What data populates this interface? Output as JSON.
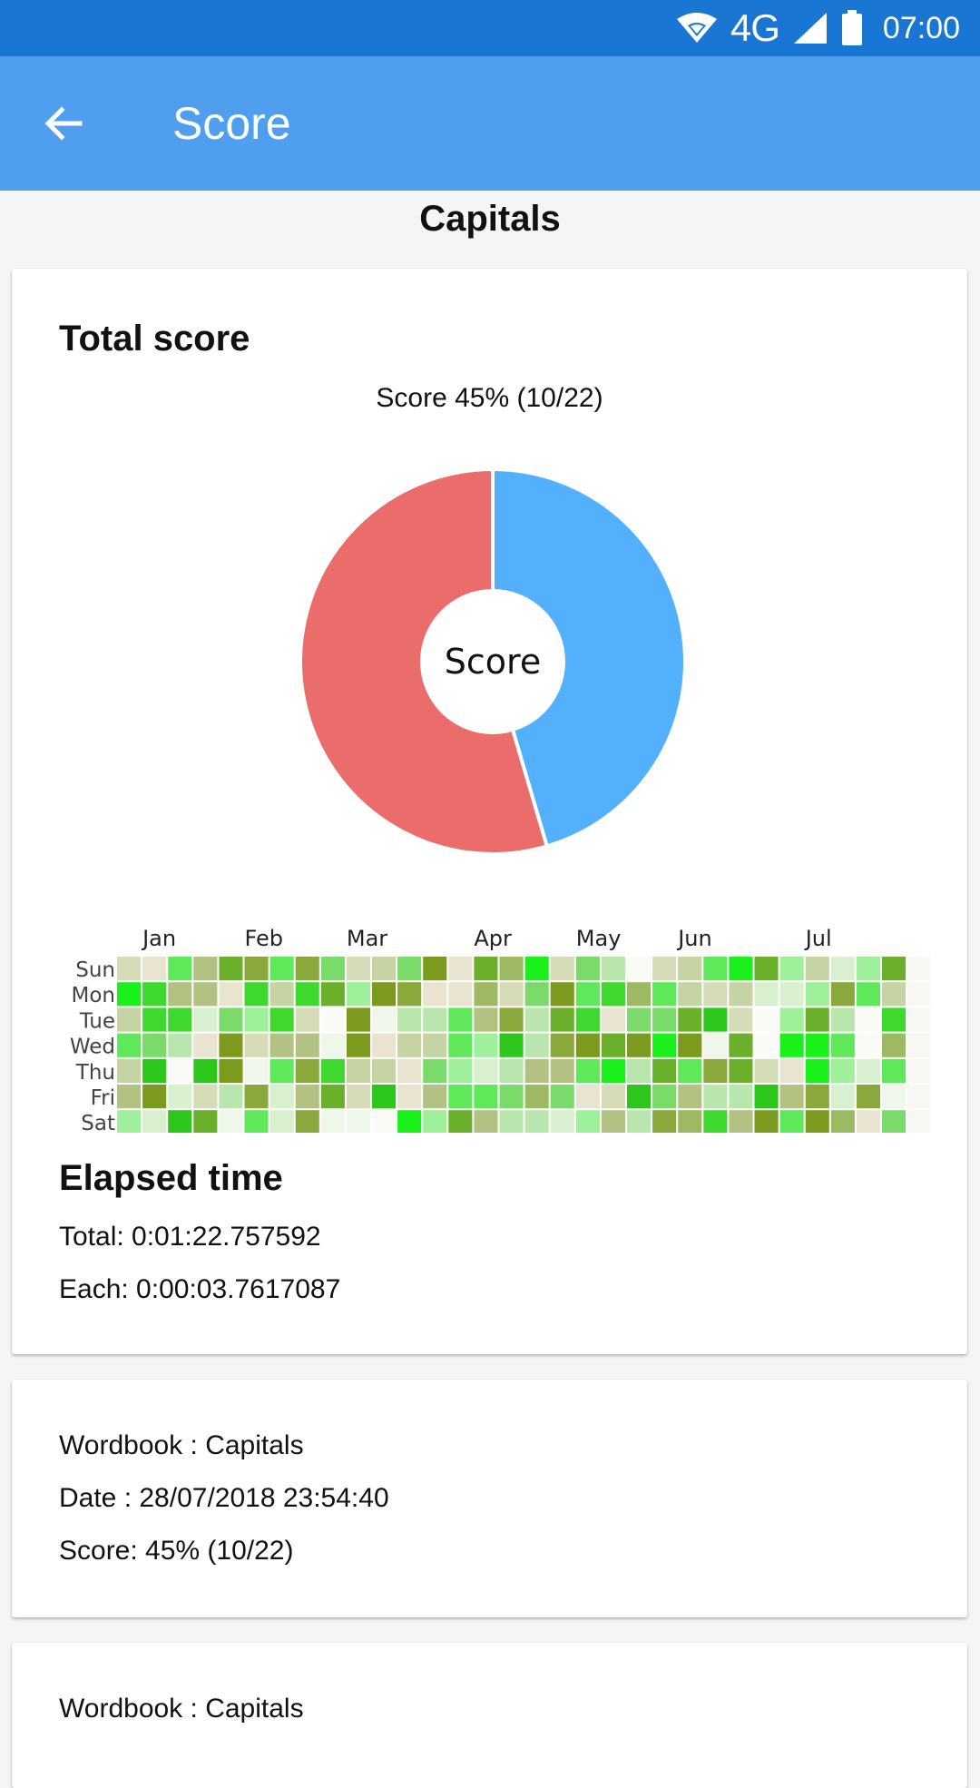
{
  "status_bar": {
    "network": "4G",
    "time": "07:00",
    "icons": [
      "wifi-icon",
      "signal-icon",
      "battery-icon"
    ]
  },
  "app_bar": {
    "title": "Score",
    "back_icon": "arrow-left-icon"
  },
  "colors": {
    "status_bar": "#1976d2",
    "app_bar": "#509fee",
    "correct": "#52b0fd",
    "wrong": "#ea6d6b"
  },
  "wordbook_heading": "Capitals",
  "total_score": {
    "title": "Total score",
    "chart_data": {
      "type": "pie",
      "title": "Score 45% (10/22)",
      "center_label": "Score",
      "slices": [
        {
          "label": "",
          "value": 10,
          "color": "#52b0fd"
        },
        {
          "label": "",
          "value": 12,
          "color": "#ea6d6b"
        }
      ]
    }
  },
  "heatmap": {
    "months": [
      "Jan",
      "Feb",
      "Mar",
      "Apr",
      "May",
      "Jun",
      "Jul"
    ],
    "month_weeks": [
      1,
      5,
      9,
      14,
      18,
      22,
      27
    ],
    "days": [
      "Sun",
      "Mon",
      "Tue",
      "Wed",
      "Thu",
      "Fri",
      "Sat"
    ],
    "weeks": 32,
    "palette": [
      "#fafaf7",
      "#eff7ea",
      "#d8f0cf",
      "#b8e6ad",
      "#9ef09a",
      "#7ada6a",
      "#5fe85a",
      "#3fd82f",
      "#2cc71a",
      "#1af01a",
      "#c5d4a2",
      "#b3c283",
      "#9dba62",
      "#8aa83c",
      "#7c9a1e",
      "#6ab02a",
      "#d6dcb8",
      "#e8e4d0"
    ]
  },
  "elapsed": {
    "title": "Elapsed time",
    "total": "Total: 0:01:22.757592",
    "each": "Each: 0:00:03.7617087"
  },
  "entries": [
    {
      "wordbook": "Wordbook : Capitals",
      "date": "Date : 28/07/2018 23:54:40",
      "score": "Score: 45% (10/22)"
    },
    {
      "wordbook": "Wordbook : Capitals"
    }
  ]
}
